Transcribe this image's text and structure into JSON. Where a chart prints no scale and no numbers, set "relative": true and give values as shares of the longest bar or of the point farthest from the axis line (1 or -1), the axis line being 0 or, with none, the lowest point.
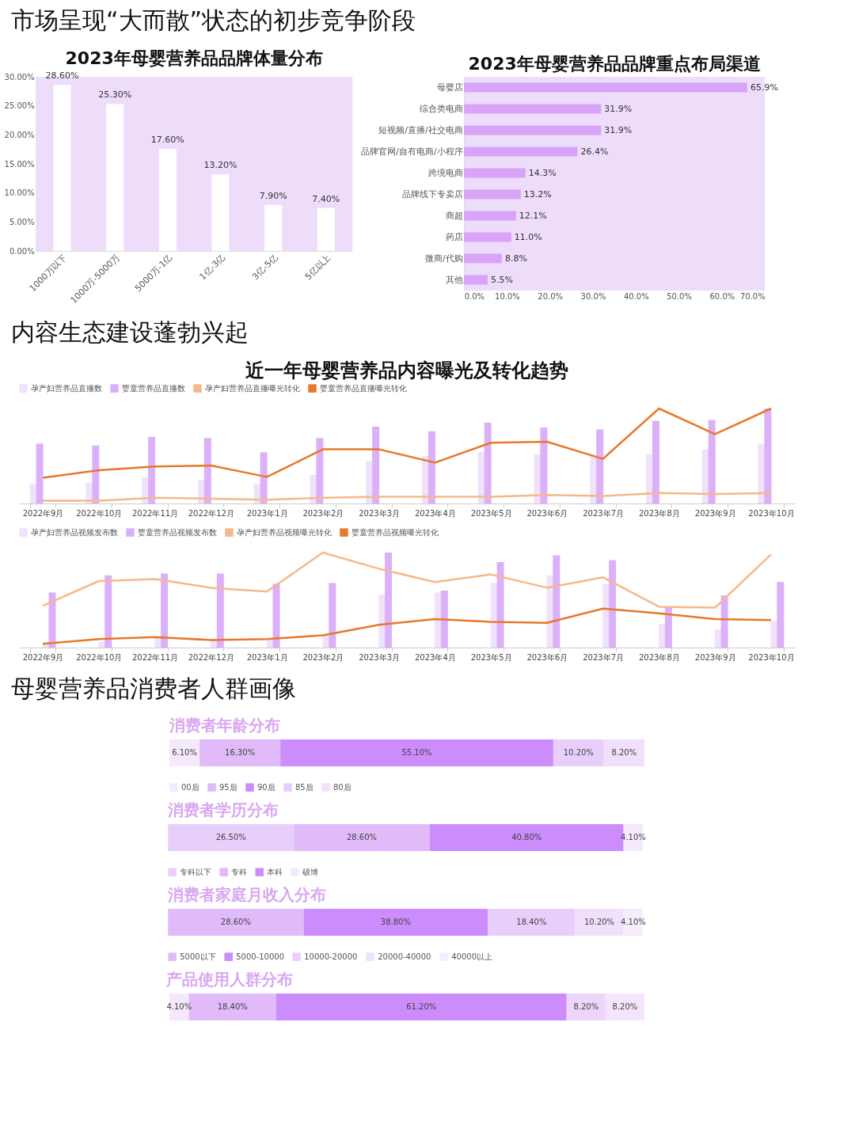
{
  "chart_data": [
    {
      "type": "other",
      "title": "市场呈现“大而散”状态的初步竞争阶段"
    },
    {
      "type": "bar",
      "title": "2023年母婴营养品品牌体量分布",
      "categories": [
        "1000万以下",
        "1000万-5000万",
        "5000万-1亿",
        "1亿-3亿",
        "3亿-5亿",
        "5亿以上"
      ],
      "values": [
        28.6,
        25.3,
        17.6,
        13.2,
        7.9,
        7.4
      ],
      "value_labels": [
        "28.60%",
        "25.30%",
        "17.60%",
        "13.20%",
        "7.90%",
        "7.40%"
      ],
      "color": "#ffffff",
      "ylim": [
        0,
        30
      ],
      "yticks": [
        {
          "value": 0,
          "label": "0.00%"
        },
        {
          "value": 5,
          "label": "5.00%"
        },
        {
          "value": 10,
          "label": "10.00%"
        },
        {
          "value": 15,
          "label": "15.00%"
        },
        {
          "value": 20,
          "label": "20.00%"
        },
        {
          "value": 25,
          "label": "25.00%"
        },
        {
          "value": 30,
          "label": "30.00%"
        }
      ]
    },
    {
      "type": "bar",
      "orientation": "horizontal",
      "title": "2023年母婴营养品品牌重点布局渠道",
      "categories": [
        "母婴店",
        "综合类电商",
        "短视频/直播/社交电商",
        "品牌官网/自有电商/小程序",
        "跨境电商",
        "品牌线下专卖店",
        "商超",
        "药店",
        "微商/代购",
        "其他"
      ],
      "values": [
        65.9,
        31.9,
        31.9,
        26.4,
        14.3,
        13.2,
        12.1,
        11.0,
        8.8,
        5.5
      ],
      "value_labels": [
        "65.9%",
        "31.9%",
        "31.9%",
        "26.4%",
        "14.3%",
        "13.2%",
        "12.1%",
        "11.0%",
        "8.8%",
        "5.5%"
      ],
      "color": "#d9a3f7",
      "xlim": [
        0,
        70
      ],
      "xticks": [
        {
          "value": 0,
          "label": "0.0%"
        },
        {
          "value": 10,
          "label": "10.0%"
        },
        {
          "value": 20,
          "label": "20.0%"
        },
        {
          "value": 30,
          "label": "30.0%"
        },
        {
          "value": 40,
          "label": "40.0%"
        },
        {
          "value": 50,
          "label": "50.0%"
        },
        {
          "value": 60,
          "label": "60.0%"
        },
        {
          "value": 70,
          "label": "70.0%"
        }
      ]
    },
    {
      "type": "other",
      "title": "内容生态建设蓬勃兴起"
    },
    {
      "type": "bar",
      "title": "近一年母婴营养品内容曝光及转化趋势",
      "relative": true,
      "legend": "top",
      "categories": [
        "2022年9月",
        "2022年10月",
        "2022年11月",
        "2022年12月",
        "2023年1月",
        "2023年2月",
        "2023年3月",
        "2023年4月",
        "2023年5月",
        "2023年6月",
        "2023年7月",
        "2023年8月",
        "2023年9月",
        "2023年10月"
      ],
      "series": [
        {
          "name": "孕产妇营养品直播数",
          "type": "bar",
          "color": "#f1e2fb",
          "values": [
            0.21,
            0.22,
            0.28,
            0.25,
            0.21,
            0.3,
            0.45,
            0.5,
            0.54,
            0.52,
            0.5,
            0.52,
            0.57,
            0.63
          ]
        },
        {
          "name": "婴童营养品直播数",
          "type": "bar",
          "color": "#dcb0f8",
          "values": [
            0.63,
            0.61,
            0.7,
            0.69,
            0.54,
            0.69,
            0.81,
            0.76,
            0.85,
            0.8,
            0.78,
            0.87,
            0.88,
            1
          ]
        },
        {
          "name": "孕产妇营养品直播曝光转化",
          "type": "line",
          "color": "#f5b88a",
          "values": [
            0.03,
            0.03,
            0.06,
            0.05,
            0.04,
            0.06,
            0.07,
            0.07,
            0.07,
            0.09,
            0.08,
            0.11,
            0.1,
            0.11
          ]
        },
        {
          "name": "婴童营养品直播曝光转化",
          "type": "line",
          "color": "#e8782a",
          "values": [
            0.27,
            0.35,
            0.39,
            0.4,
            0.28,
            0.57,
            0.57,
            0.43,
            0.64,
            0.65,
            0.47,
            1,
            0.73,
            1
          ]
        }
      ]
    },
    {
      "type": "bar",
      "relative": true,
      "legend": "top",
      "categories": [
        "2022年9月",
        "2022年10月",
        "2022年11月",
        "2022年12月",
        "2023年1月",
        "2023年2月",
        "2023年3月",
        "2023年4月",
        "2023年5月",
        "2023年6月",
        "2023年7月",
        "2023年8月",
        "2023年9月",
        "2023年10月"
      ],
      "series": [
        {
          "name": "孕产妇营养品视频发布数",
          "type": "bar",
          "color": "#f1e2fb",
          "values": [
            0.03,
            0.06,
            0.11,
            0.08,
            0.08,
            0.13,
            0.56,
            0.58,
            0.68,
            0.76,
            0.67,
            0.25,
            0.19,
            0.28
          ]
        },
        {
          "name": "婴童营养品视频发布数",
          "type": "bar",
          "color": "#dcb0f8",
          "values": [
            0.58,
            0.76,
            0.78,
            0.78,
            0.67,
            0.68,
            1,
            0.6,
            0.9,
            0.97,
            0.92,
            0.43,
            0.55,
            0.69
          ]
        },
        {
          "name": "孕产妇营养品视频曝光转化",
          "type": "line",
          "color": "#f5b88a",
          "values": [
            0.44,
            0.7,
            0.72,
            0.63,
            0.59,
            1,
            0.83,
            0.69,
            0.77,
            0.63,
            0.74,
            0.43,
            0.42,
            0.98
          ]
        },
        {
          "name": "婴童营养品视频曝光转化",
          "type": "line",
          "color": "#e8782a",
          "values": [
            0.04,
            0.09,
            0.11,
            0.08,
            0.09,
            0.13,
            0.24,
            0.3,
            0.27,
            0.26,
            0.41,
            0.36,
            0.3,
            0.29
          ]
        }
      ]
    },
    {
      "type": "other",
      "title": "母婴营养品消费者人群画像"
    },
    {
      "type": "bar",
      "orientation": "horizontal",
      "stacked": true,
      "title": "消费者年龄分布",
      "legend": "bottom",
      "categories": [
        null
      ],
      "series": [
        {
          "name": "00后",
          "color": "#f5e9fc",
          "values": [
            6.1
          ],
          "value_labels": [
            "6.10%"
          ]
        },
        {
          "name": "95后",
          "color": "#e0baf9",
          "values": [
            16.3
          ],
          "value_labels": [
            "16.30%"
          ]
        },
        {
          "name": "90后",
          "color": "#cc8cfc",
          "values": [
            55.1
          ],
          "value_labels": [
            "55.10%"
          ]
        },
        {
          "name": "85后",
          "color": "#e8cffb",
          "values": [
            10.2
          ],
          "value_labels": [
            "10.20%"
          ]
        },
        {
          "name": "80后",
          "color": "#f0e0fc",
          "values": [
            8.2
          ],
          "value_labels": [
            "8.20%"
          ]
        }
      ]
    },
    {
      "type": "bar",
      "orientation": "horizontal",
      "stacked": true,
      "title": "消费者学历分布",
      "legend": "bottom",
      "categories": [
        null
      ],
      "series": [
        {
          "name": "专科以下",
          "color": "#e8cffb",
          "values": [
            26.5
          ],
          "value_labels": [
            "26.50%"
          ]
        },
        {
          "name": "专科",
          "color": "#e0baf9",
          "values": [
            28.6
          ],
          "value_labels": [
            "28.60%"
          ]
        },
        {
          "name": "本科",
          "color": "#cc8cfc",
          "values": [
            40.8
          ],
          "value_labels": [
            "40.80%"
          ]
        },
        {
          "name": "硕博",
          "color": "#f5eafc",
          "values": [
            4.1
          ],
          "value_labels": [
            "4.10%"
          ]
        }
      ]
    },
    {
      "type": "bar",
      "orientation": "horizontal",
      "stacked": true,
      "title": "消费者家庭月收入分布",
      "legend": "bottom",
      "categories": [
        null
      ],
      "series": [
        {
          "name": "5000以下",
          "color": "#e0baf9",
          "values": [
            28.6
          ],
          "value_labels": [
            "28.60%"
          ]
        },
        {
          "name": "5000-10000",
          "color": "#cc8cfc",
          "values": [
            38.8
          ],
          "value_labels": [
            "38.80%"
          ]
        },
        {
          "name": "10000-20000",
          "color": "#e8cffb",
          "values": [
            18.4
          ],
          "value_labels": [
            "18.40%"
          ]
        },
        {
          "name": "20000-40000",
          "color": "#f0e0fc",
          "values": [
            10.2
          ],
          "value_labels": [
            "10.20%"
          ]
        },
        {
          "name": "40000以上",
          "color": "#f6edfc",
          "values": [
            4.1
          ],
          "value_labels": [
            "4.10%"
          ]
        }
      ]
    },
    {
      "type": "bar",
      "orientation": "horizontal",
      "stacked": true,
      "title": "产品使用人群分布",
      "categories": [
        null
      ],
      "series": [
        {
          "color": "#f5e8fc",
          "values": [
            4.1
          ],
          "value_labels": [
            "4.10%"
          ]
        },
        {
          "color": "#e0baf9",
          "values": [
            18.4
          ],
          "value_labels": [
            "18.40%"
          ]
        },
        {
          "color": "#cc8cfc",
          "values": [
            61.2
          ],
          "value_labels": [
            "61.20%"
          ]
        },
        {
          "color": "#ecd6fb",
          "values": [
            8.2
          ],
          "value_labels": [
            "8.20%"
          ]
        },
        {
          "color": "#f3e6fc",
          "values": [
            8.2
          ],
          "value_labels": [
            "8.20%"
          ]
        }
      ]
    }
  ]
}
